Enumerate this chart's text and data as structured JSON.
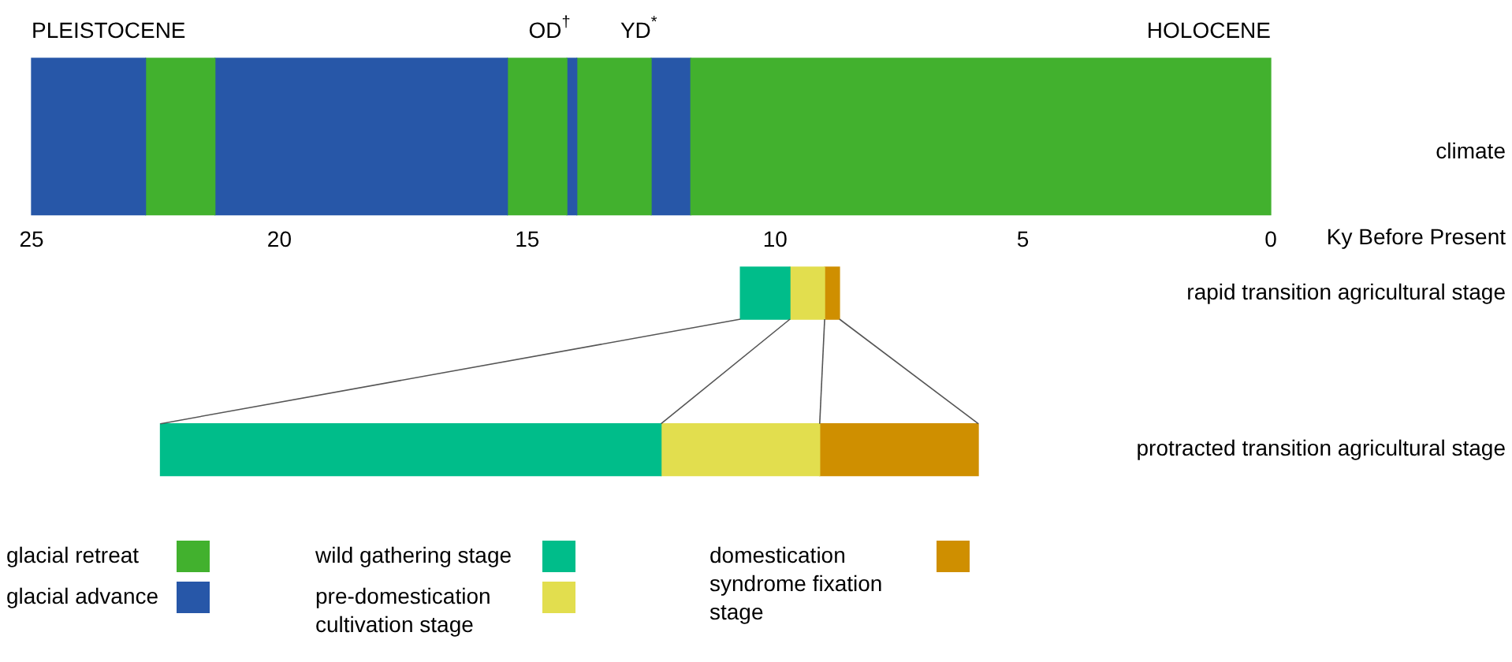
{
  "chart_data": {
    "type": "bar",
    "orientation": "horizontal",
    "categories": [
      "climate",
      "rapid transition agricultural stage",
      "protracted transition agricultural stage"
    ],
    "xlim": [
      25,
      0
    ],
    "xticks": [
      25,
      20,
      15,
      10,
      5,
      0
    ],
    "xlabel": "Ky Before Present",
    "legend": "bottom left",
    "annotations": [
      "PLEISTOCENE",
      "OD$^{†}$",
      "YD$^{*}$",
      "HOLOCENE"
    ],
    "series": [
      {
        "name": "glacial retreat",
        "color": "#42b12e",
        "values": [
          11.7,
          null,
          null
        ],
        "base": [
          0,
          null,
          null
        ]
      },
      {
        "name": "glacial advance",
        "color": "#2757a8",
        "values": [
          2.3,
          null,
          null
        ],
        "base": [
          22.7,
          null,
          null
        ]
      },
      {
        "color": "#42b12e",
        "values": [
          1.4,
          null,
          null
        ],
        "base": [
          21.3,
          null,
          null
        ]
      },
      {
        "color": "#2757a8",
        "values": [
          5.9,
          null,
          null
        ],
        "base": [
          15.4,
          null,
          null
        ]
      },
      {
        "color": "#42b12e",
        "values": [
          1.2,
          null,
          null
        ],
        "base": [
          14.2,
          null,
          null
        ]
      },
      {
        "color": "#2757a8",
        "values": [
          0.2,
          null,
          null
        ],
        "base": [
          14.0,
          null,
          null
        ]
      },
      {
        "color": "#42b12e",
        "values": [
          1.5,
          null,
          null
        ],
        "base": [
          12.5,
          null,
          null
        ]
      },
      {
        "color": "#2757a8",
        "values": [
          0.8,
          null,
          null
        ],
        "base": [
          11.7,
          null,
          null
        ]
      },
      {
        "name": "wild gathering stage",
        "color": "#00bd8a",
        "values": [
          null,
          1.0,
          10.1
        ],
        "base": [
          null,
          9.7,
          12.3
        ]
      },
      {
        "name": "pre-domestication cultivation stage",
        "color": "#e2de4e",
        "values": [
          null,
          0.7,
          3.2
        ],
        "base": [
          null,
          9.0,
          9.1
        ]
      },
      {
        "name": "domestication syndrome fixation stage",
        "color": "#cf8f00",
        "values": [
          null,
          0.3,
          3.2
        ],
        "base": [
          null,
          8.7,
          5.9
        ]
      }
    ]
  }
}
